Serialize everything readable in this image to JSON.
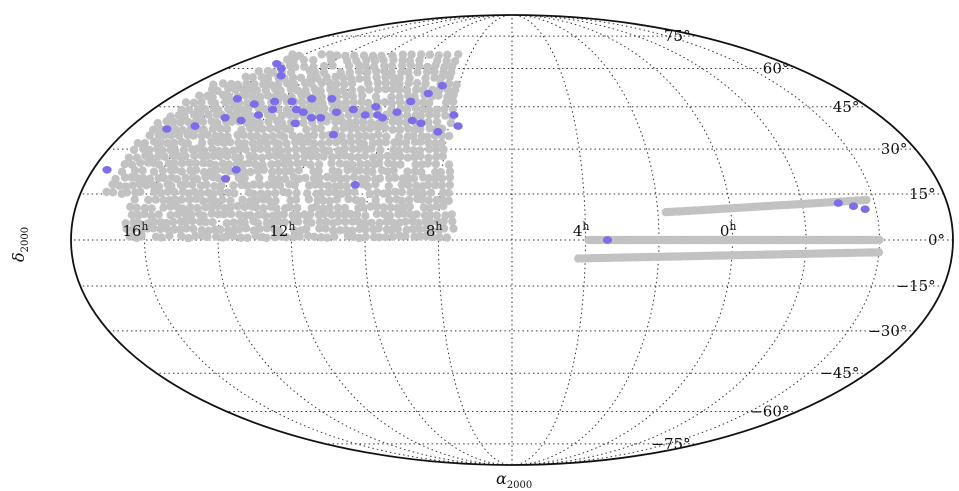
{
  "chart_data": {
    "type": "scatter",
    "projection": "mollweide",
    "title": "",
    "xlabel": {
      "symbol": "α",
      "subscript": "2000"
    },
    "ylabel": {
      "symbol": "δ",
      "subscript": "2000"
    },
    "grid": true,
    "colors": {
      "survey": "#c2c2c2",
      "highlight": "#7b6ee8",
      "grid": "#333333",
      "border": "#111111"
    },
    "ra_ticks_hours": [
      {
        "value": 16,
        "label": "16",
        "sup": "h"
      },
      {
        "value": 12,
        "label": "12",
        "sup": "h"
      },
      {
        "value": 8,
        "label": "8",
        "sup": "h"
      },
      {
        "value": 4,
        "label": "4",
        "sup": "h"
      },
      {
        "value": 0,
        "label": "0",
        "sup": "h"
      }
    ],
    "dec_ticks_deg": [
      {
        "value": 75,
        "label": "75°"
      },
      {
        "value": 60,
        "label": "60°"
      },
      {
        "value": 45,
        "label": "45°"
      },
      {
        "value": 30,
        "label": "30°"
      },
      {
        "value": 15,
        "label": "15°"
      },
      {
        "value": 0,
        "label": "0°"
      },
      {
        "value": -15,
        "label": "−15°"
      },
      {
        "value": -30,
        "label": "−30°"
      },
      {
        "value": -45,
        "label": "−45°"
      },
      {
        "value": -60,
        "label": "−60°"
      },
      {
        "value": -75,
        "label": "−75°"
      }
    ],
    "survey_footprint": {
      "north_cap": {
        "ra_min_h": 7.6,
        "ra_max_h": 17.4,
        "dec_min": 0,
        "dec_max": 67,
        "description_points": "dense grey fields"
      },
      "stripe_upper": {
        "ra_h": [
          -3.8,
          1.8
        ],
        "dec_start": 13,
        "dec_end": 9
      },
      "stripe_equator": {
        "ra_h": [
          -4.0,
          4.0
        ],
        "dec": 0
      },
      "stripe_lower": {
        "ra_h": [
          -4.0,
          4.2
        ],
        "dec_start": -4,
        "dec_end": -6
      }
    },
    "series": [
      {
        "name": "",
        "role": "highlight",
        "points": [
          [
            16.3,
            62
          ],
          [
            15.7,
            60
          ],
          [
            15.2,
            57
          ],
          [
            15.6,
            48
          ],
          [
            14.8,
            46
          ],
          [
            14.2,
            47
          ],
          [
            13.6,
            47
          ],
          [
            13.2,
            44
          ],
          [
            16.8,
            37
          ],
          [
            16.0,
            38
          ],
          [
            15.3,
            41
          ],
          [
            14.7,
            40
          ],
          [
            14.3,
            42
          ],
          [
            14.0,
            44
          ],
          [
            12.9,
            43
          ],
          [
            12.5,
            41
          ],
          [
            12.2,
            41
          ],
          [
            11.3,
            44
          ],
          [
            10.8,
            42
          ],
          [
            10.4,
            42
          ],
          [
            10.2,
            41
          ],
          [
            9.8,
            43
          ],
          [
            9.2,
            40
          ],
          [
            8.9,
            39
          ],
          [
            8.3,
            36
          ],
          [
            7.9,
            42
          ],
          [
            7.7,
            38
          ],
          [
            12.9,
            39
          ],
          [
            11.5,
            35
          ],
          [
            13.9,
            23
          ],
          [
            14.1,
            20
          ],
          [
            10.4,
            18
          ],
          [
            11.8,
            43
          ],
          [
            10.6,
            45
          ],
          [
            9.5,
            47
          ],
          [
            9.0,
            50
          ],
          [
            8.6,
            53
          ],
          [
            12.3,
            48
          ],
          [
            13.0,
            48
          ],
          [
            17.6,
            23
          ],
          [
            -3.0,
            12
          ],
          [
            -3.4,
            11
          ],
          [
            -3.7,
            10
          ],
          [
            3.4,
            0
          ]
        ]
      }
    ]
  }
}
